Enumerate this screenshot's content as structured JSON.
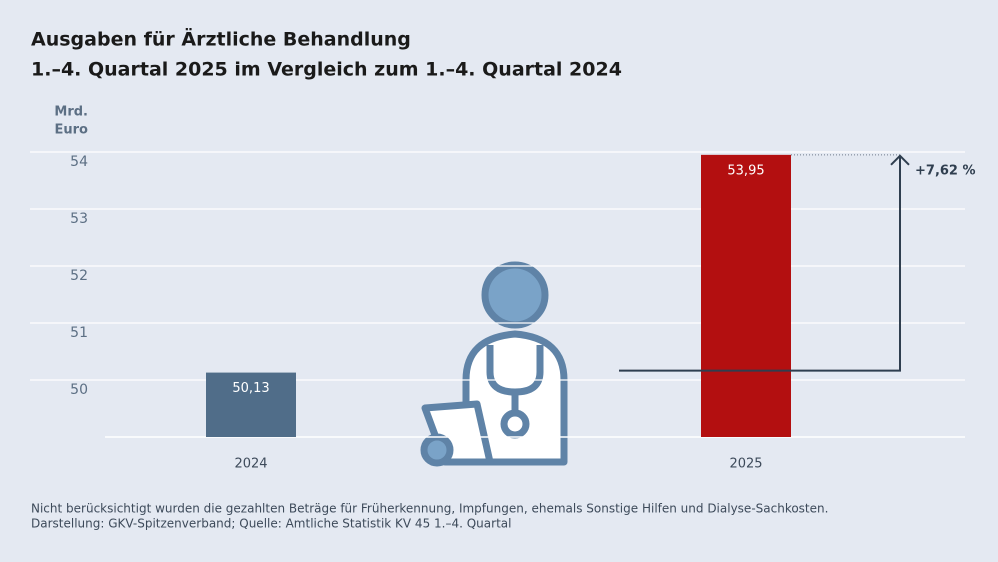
{
  "chart_data": {
    "type": "bar",
    "title": "Ausgaben für Ärztliche Behandlung",
    "subtitle": "1.–4. Quartal 2025 im Vergleich zum 1.–4. Quartal 2024",
    "y_label": [
      "Mrd.",
      "Euro"
    ],
    "categories": [
      "2024",
      "2025"
    ],
    "values": [
      50.13,
      53.95
    ],
    "value_labels": [
      "50,13",
      "53,95"
    ],
    "colors": [
      "#506d89",
      "#b30f10"
    ],
    "ylim": [
      49,
      54
    ],
    "yticks": [
      50,
      51,
      52,
      53,
      54
    ],
    "grid": true,
    "annotation": "+7,62 %",
    "footnotes": [
      "Nicht berücksichtigt wurden die gezahlten Beträge für Früherkennung, Impfungen, ehemals Sonstige Hilfen und Dialyse-Sachkosten.",
      "Darstellung: GKV-Spitzenverband; Quelle: Amtliche Statistik KV 45 1.–4. Quartal"
    ]
  }
}
